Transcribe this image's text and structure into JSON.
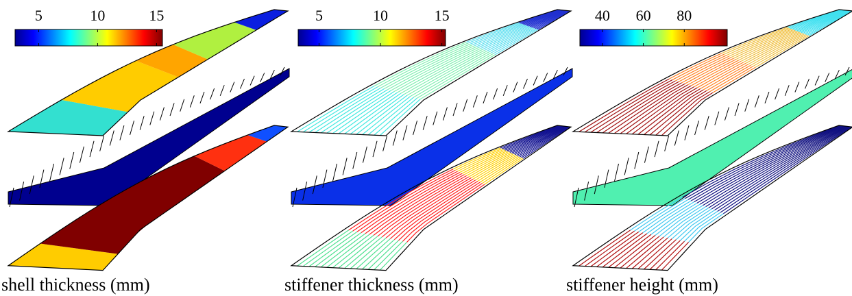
{
  "panels": [
    {
      "caption": "shell thickness (mm)",
      "colorbar": {
        "lim": [
          3,
          15.5
        ],
        "ticks": [
          5,
          10,
          15
        ]
      }
    },
    {
      "caption": "stiffener thickness (mm)",
      "colorbar": {
        "lim": [
          3.3,
          15.3
        ],
        "ticks": [
          5,
          10,
          15
        ]
      }
    },
    {
      "caption": "stiffener height (mm)",
      "colorbar": {
        "lim": [
          29,
          101
        ],
        "ticks": [
          40,
          60,
          80
        ]
      }
    }
  ]
}
